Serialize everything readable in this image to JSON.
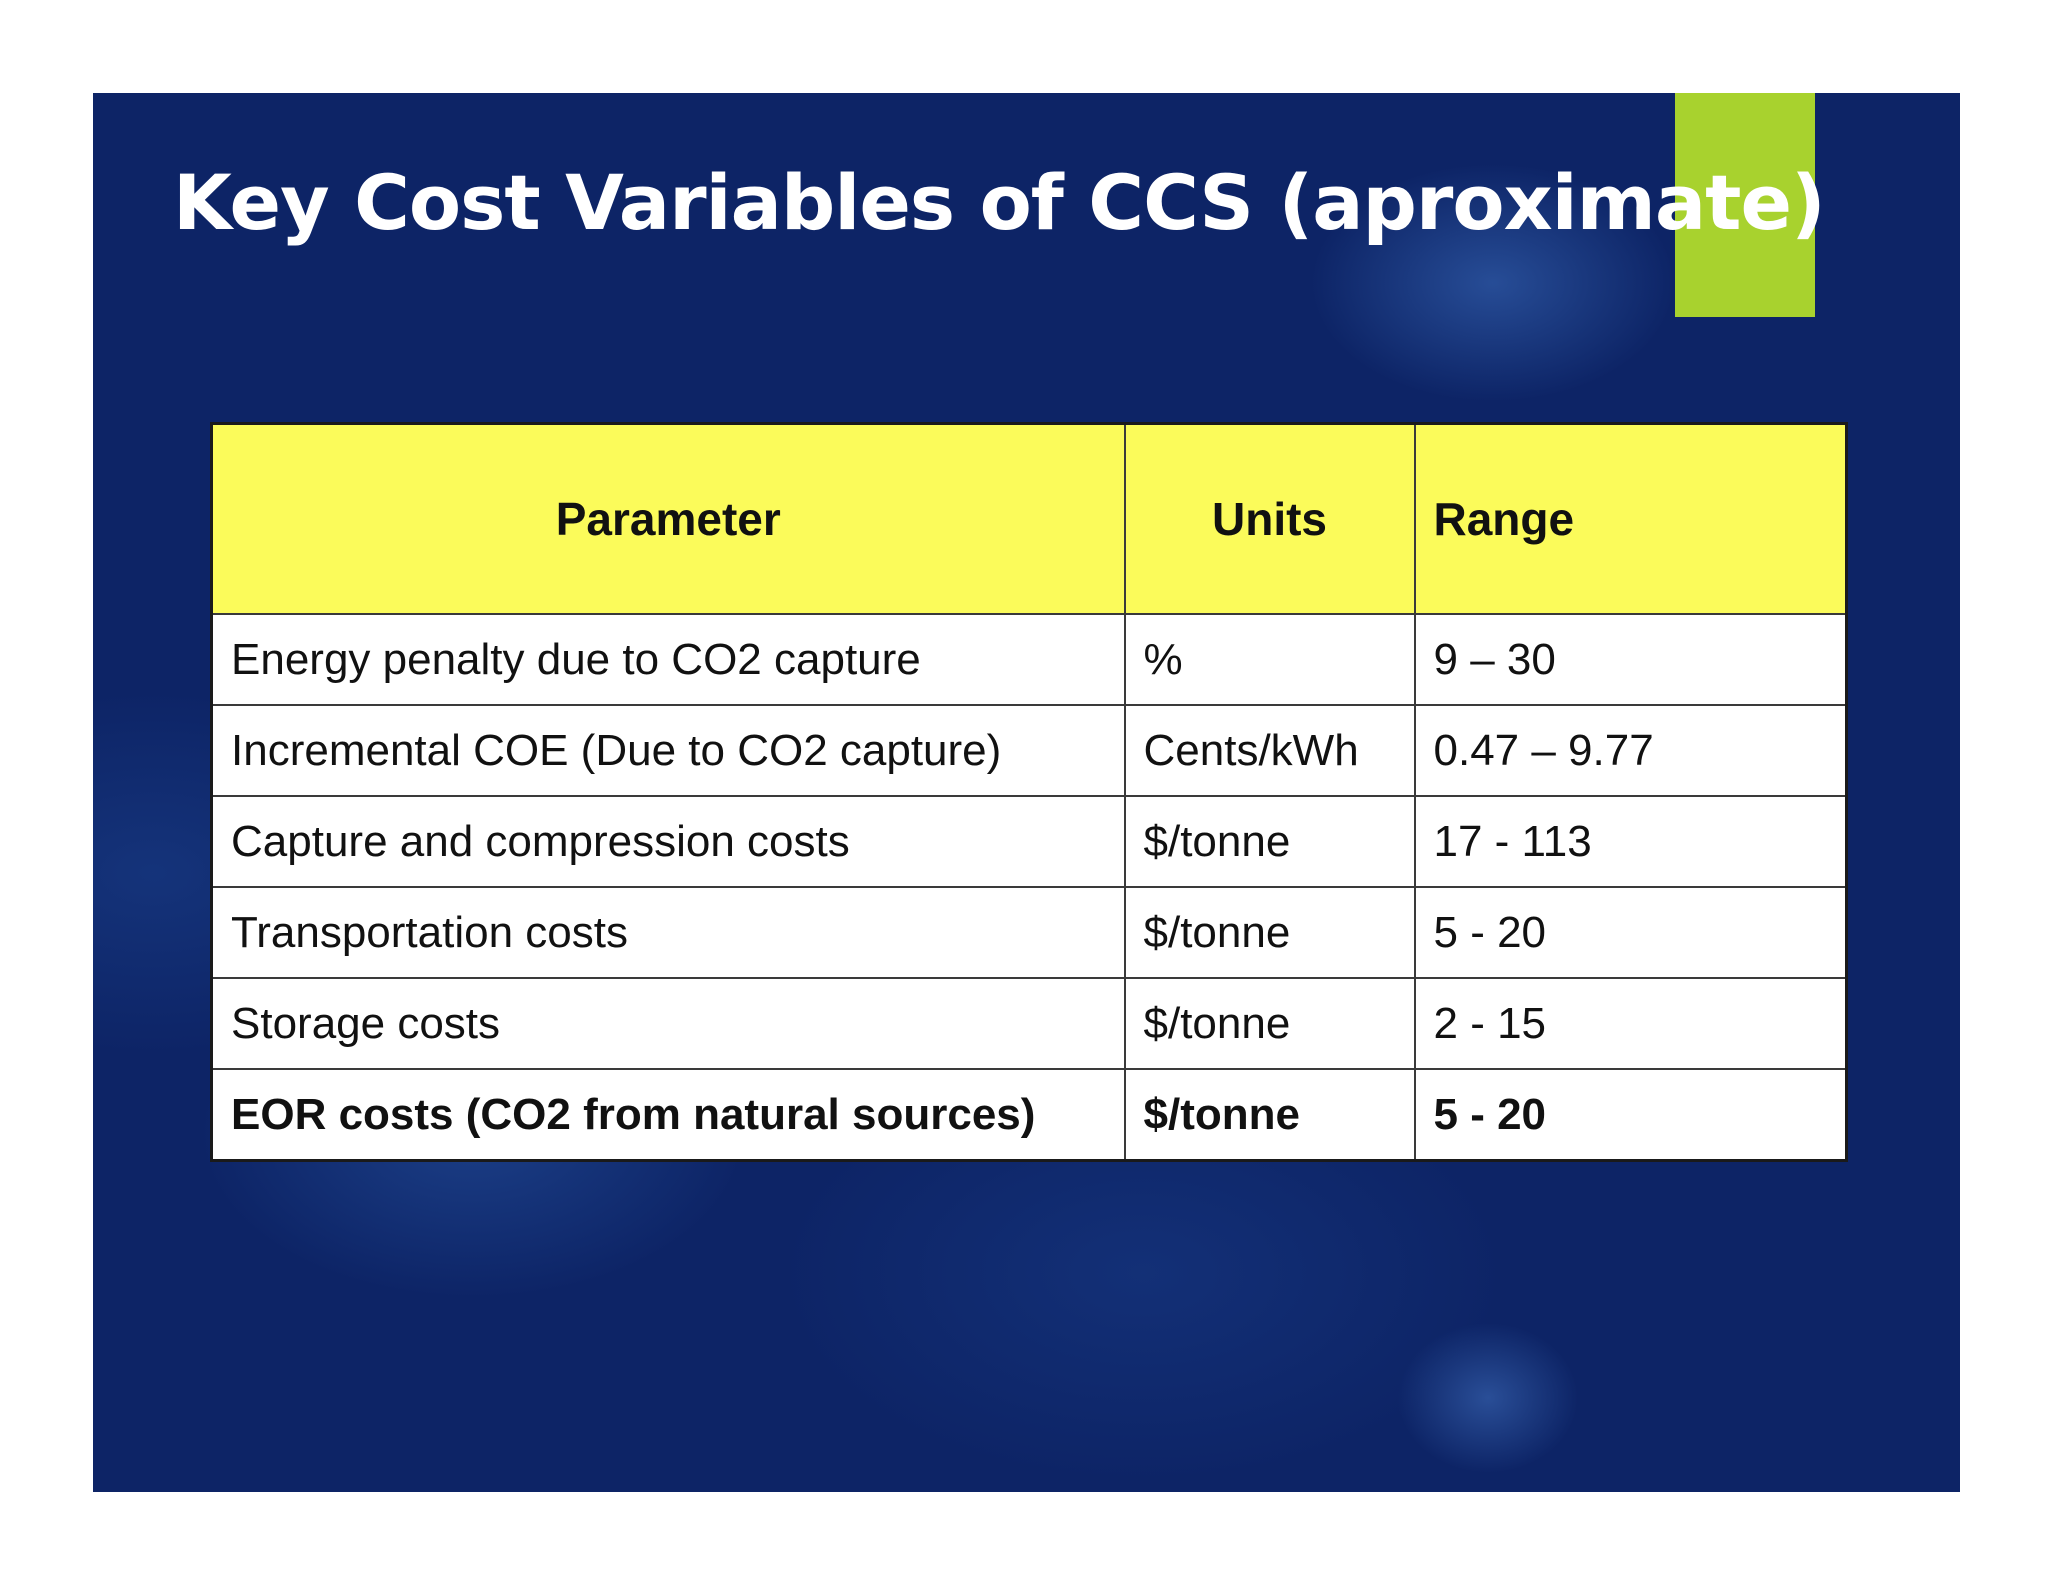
{
  "slide": {
    "title": "Key Cost Variables of CCS (aproximate)",
    "background_color": "#0d2466",
    "accent_color": "#a8d22e"
  },
  "table": {
    "header_color": "#fbfb5a",
    "headers": {
      "parameter": "Parameter",
      "units": "Units",
      "range": "Range"
    },
    "rows": [
      {
        "parameter": "Energy penalty due to CO2 capture",
        "units": "%",
        "range": "9 – 30",
        "bold": false
      },
      {
        "parameter": "Incremental COE (Due to CO2 capture)",
        "units": "Cents/kWh",
        "range": "0.47 – 9.77",
        "bold": false
      },
      {
        "parameter": "Capture and compression costs",
        "units": "$/tonne",
        "range": "17 - 113",
        "bold": false
      },
      {
        "parameter": "Transportation costs",
        "units": "$/tonne",
        "range": "5 - 20",
        "bold": false
      },
      {
        "parameter": "Storage costs",
        "units": "$/tonne",
        "range": "2 - 15",
        "bold": false
      },
      {
        "parameter": "EOR costs (CO2 from natural sources)",
        "units": "$/tonne",
        "range": "5 - 20",
        "bold": true
      }
    ]
  }
}
